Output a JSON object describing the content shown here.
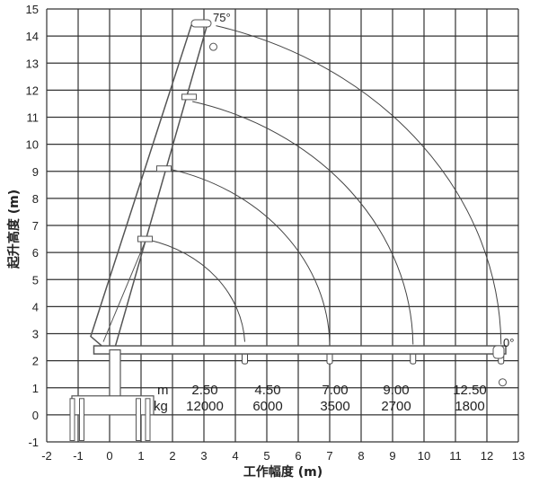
{
  "diagram": {
    "x_axis": {
      "label": "工作幅度 (m)",
      "ticks": [
        -2,
        -1,
        0,
        1,
        2,
        3,
        4,
        5,
        6,
        7,
        8,
        9,
        10,
        11,
        12,
        13
      ],
      "range": [
        -2,
        13
      ]
    },
    "y_axis": {
      "label": "起升高度 (m)",
      "ticks": [
        -1,
        0,
        1,
        2,
        3,
        4,
        5,
        6,
        7,
        8,
        9,
        10,
        11,
        12,
        13,
        14,
        15
      ],
      "range": [
        -1,
        15
      ]
    },
    "grid": true,
    "angle_labels": {
      "max": "75°",
      "min": "0°"
    },
    "load_table": {
      "radius_unit": "m",
      "load_unit": "kg",
      "radius": [
        "2.50",
        "4.50",
        "7.00",
        "9.00",
        "12.50"
      ],
      "load": [
        "12000",
        "6000",
        "3500",
        "2700",
        "1800"
      ]
    },
    "boom_sections_radius_m": [
      4.1,
      6.8,
      9.4,
      12.3
    ],
    "line_color": "#333333"
  }
}
